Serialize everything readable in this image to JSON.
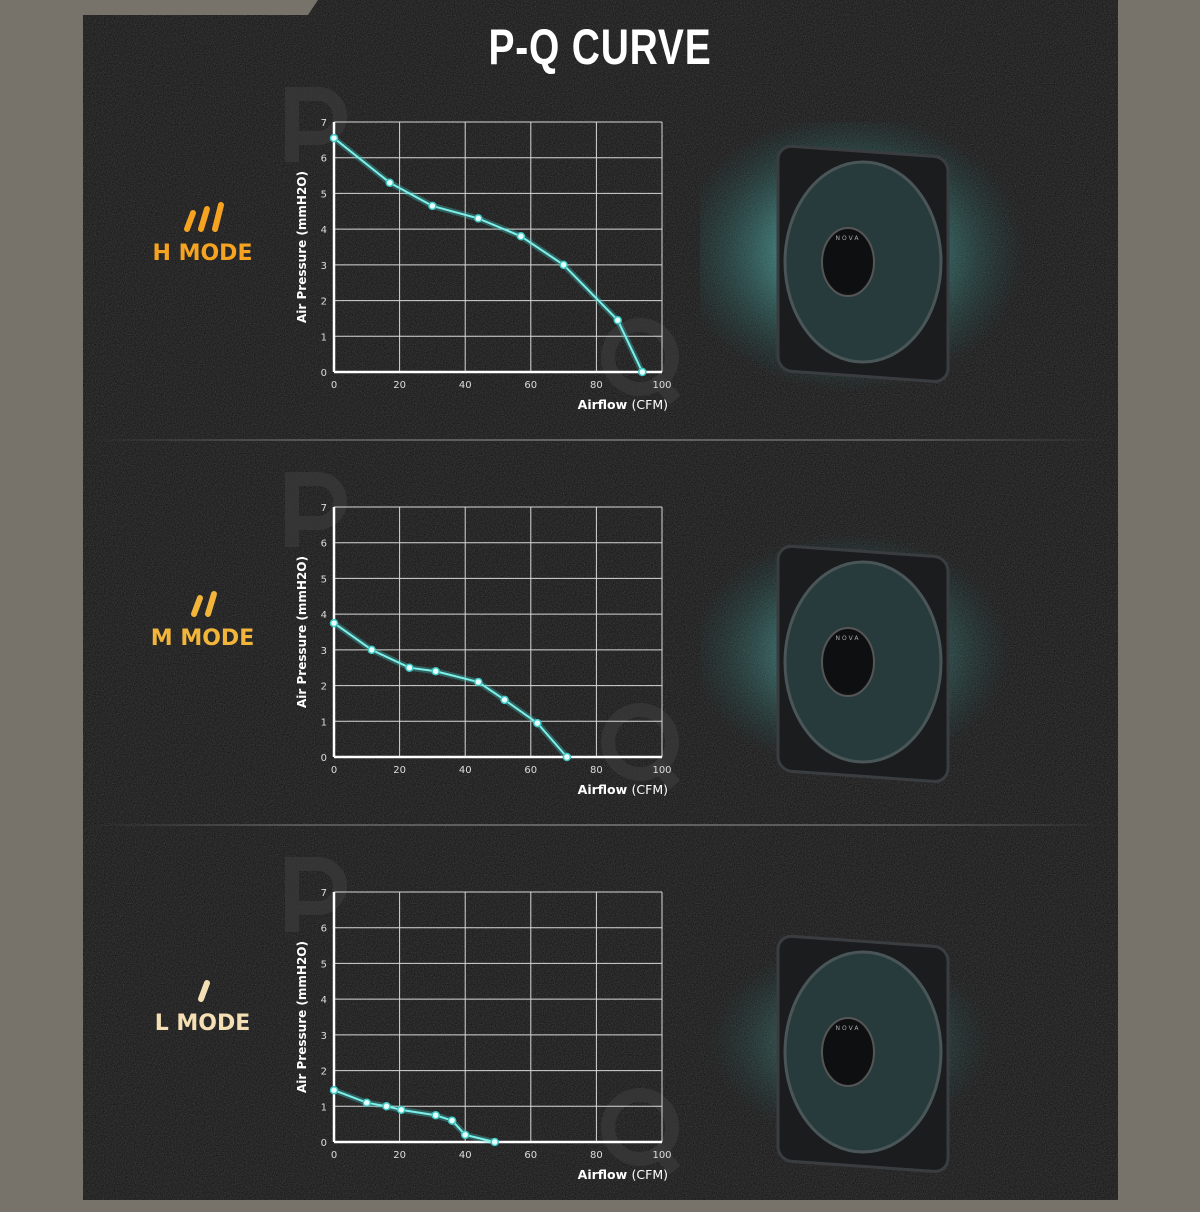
{
  "title": "P-Q CURVE",
  "colors": {
    "curve": "#7ff0ea",
    "glow": "#3fc9c4",
    "h_mode": "#f5a321",
    "m_mode": "#f2b53a",
    "l_mode": "#f4e0b4",
    "grid": "#d8d8d8"
  },
  "icons": {
    "mode_indicator": "slanted-bars-icon",
    "fan": "fan-icon"
  },
  "fan_brand": "NOVA",
  "chart_data": [
    {
      "type": "line",
      "mode_label": "H MODE",
      "bars": 3,
      "xlabel": "Airflow",
      "xlabel_unit": "(CFM)",
      "ylabel": "Air Pressure (mmH2O)",
      "xlim": [
        0,
        100
      ],
      "ylim": [
        0,
        7
      ],
      "xticks": [
        0,
        20,
        40,
        60,
        80,
        100
      ],
      "yticks": [
        0,
        1,
        2,
        3,
        4,
        5,
        6,
        7
      ],
      "grid": true,
      "x": [
        0,
        17,
        30,
        44,
        57,
        70,
        86.5,
        94
      ],
      "y": [
        6.55,
        5.3,
        4.65,
        4.3,
        3.8,
        3.0,
        1.45,
        0
      ]
    },
    {
      "type": "line",
      "mode_label": "M MODE",
      "bars": 2,
      "xlabel": "Airflow",
      "xlabel_unit": "(CFM)",
      "ylabel": "Air Pressure (mmH2O)",
      "xlim": [
        0,
        100
      ],
      "ylim": [
        0,
        7
      ],
      "xticks": [
        0,
        20,
        40,
        60,
        80,
        100
      ],
      "yticks": [
        0,
        1,
        2,
        3,
        4,
        5,
        6,
        7
      ],
      "grid": true,
      "x": [
        0,
        11.5,
        23,
        31,
        44,
        52,
        62,
        71
      ],
      "y": [
        3.75,
        3.0,
        2.5,
        2.4,
        2.1,
        1.6,
        0.95,
        0
      ]
    },
    {
      "type": "line",
      "mode_label": "L MODE",
      "bars": 1,
      "xlabel": "Airflow",
      "xlabel_unit": "(CFM)",
      "ylabel": "Air Pressure (mmH2O)",
      "xlim": [
        0,
        100
      ],
      "ylim": [
        0,
        7
      ],
      "xticks": [
        0,
        20,
        40,
        60,
        80,
        100
      ],
      "yticks": [
        0,
        1,
        2,
        3,
        4,
        5,
        6,
        7
      ],
      "grid": true,
      "x": [
        0,
        10,
        16,
        20.5,
        31,
        36,
        40,
        49
      ],
      "y": [
        1.45,
        1.1,
        1.0,
        0.9,
        0.75,
        0.6,
        0.2,
        0
      ]
    }
  ]
}
